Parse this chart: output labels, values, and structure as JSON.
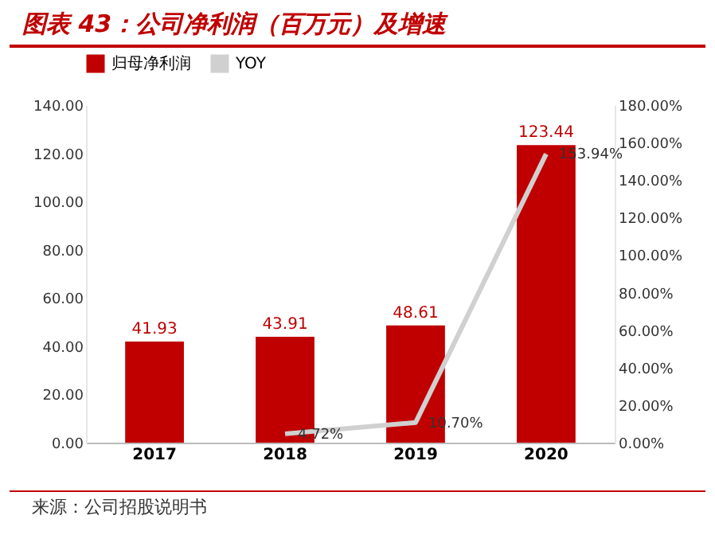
{
  "chart_data": {
    "type": "bar",
    "title": "图表 43：公司净利润（百万元）及增速",
    "categories": [
      "2017",
      "2018",
      "2019",
      "2020"
    ],
    "series": [
      {
        "name": "归母净利润",
        "type": "bar",
        "color": "#c00000",
        "values": [
          41.93,
          43.91,
          48.61,
          123.44
        ],
        "value_labels": [
          "41.93",
          "43.91",
          "48.61",
          "123.44"
        ]
      },
      {
        "name": "YOY",
        "type": "line",
        "axis": "y2",
        "color": "#d0d0d0",
        "values": [
          null,
          4.72,
          10.7,
          153.94
        ],
        "value_labels": [
          null,
          "4.72%",
          "10.70%",
          "153.94%"
        ]
      }
    ],
    "ylim": [
      0,
      140
    ],
    "yticks": [
      {
        "value": 0,
        "label": "0.00"
      },
      {
        "value": 20,
        "label": "20.00"
      },
      {
        "value": 40,
        "label": "40.00"
      },
      {
        "value": 60,
        "label": "60.00"
      },
      {
        "value": 80,
        "label": "80.00"
      },
      {
        "value": 100,
        "label": "100.00"
      },
      {
        "value": 120,
        "label": "120.00"
      },
      {
        "value": 140,
        "label": "140.00"
      }
    ],
    "y2lim": [
      0,
      180
    ],
    "y2ticks": [
      {
        "value": 0,
        "label": "0.00%"
      },
      {
        "value": 20,
        "label": "20.00%"
      },
      {
        "value": 40,
        "label": "40.00%"
      },
      {
        "value": 60,
        "label": "60.00%"
      },
      {
        "value": 80,
        "label": "80.00%"
      },
      {
        "value": 100,
        "label": "100.00%"
      },
      {
        "value": 120,
        "label": "120.00%"
      },
      {
        "value": 140,
        "label": "140.00%"
      },
      {
        "value": 160,
        "label": "160.00%"
      },
      {
        "value": 180,
        "label": "180.00%"
      }
    ],
    "legend": "top",
    "grid": false,
    "annotations": [
      "来源：公司招股说明书"
    ]
  }
}
